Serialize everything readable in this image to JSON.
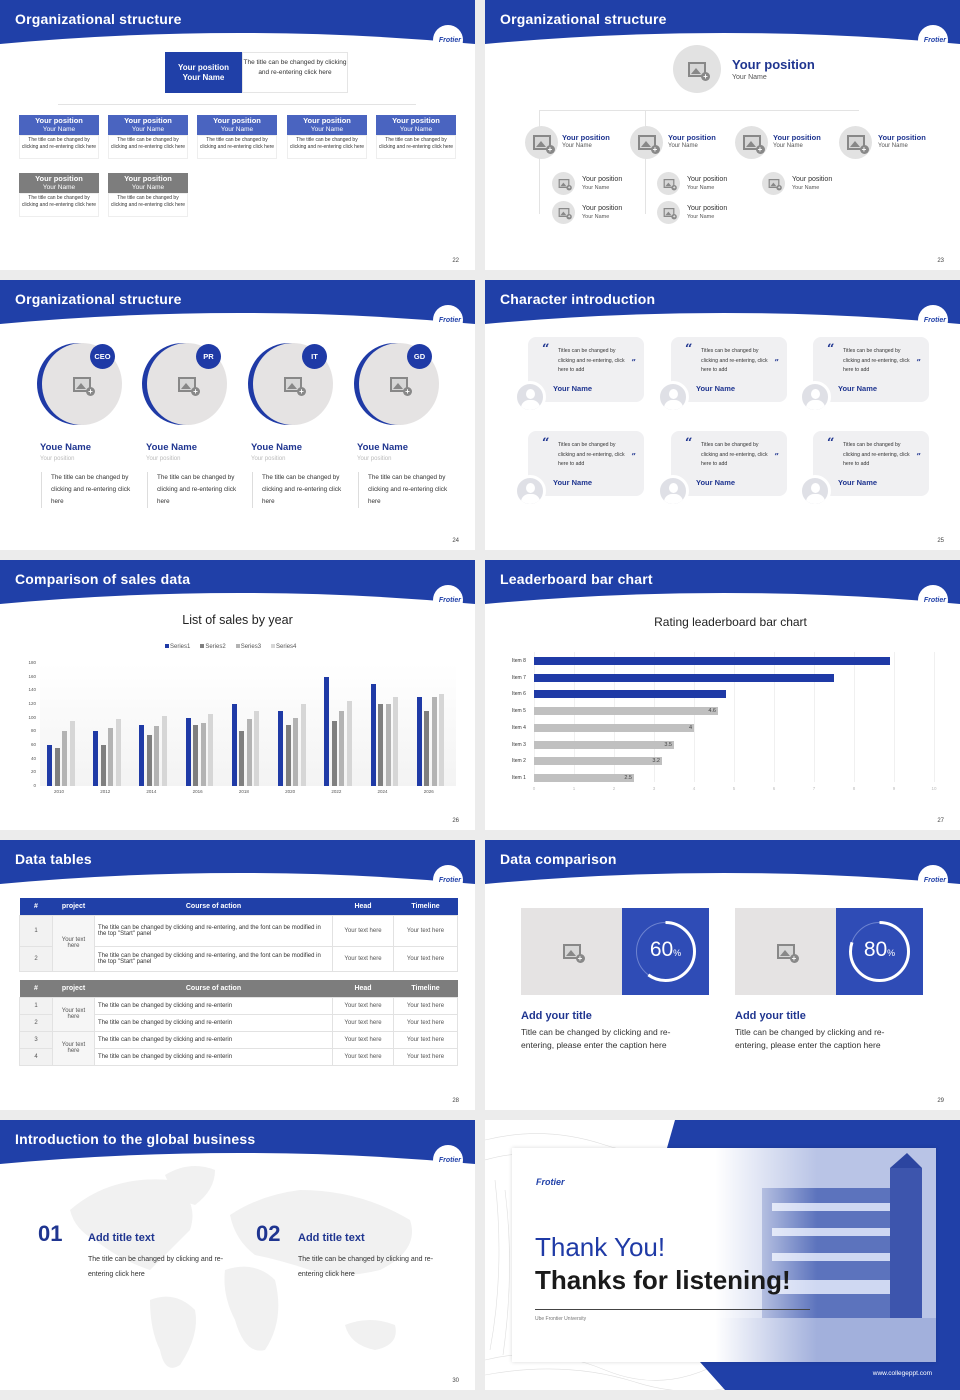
{
  "brand": {
    "logo_text": "Frotier",
    "primary_color": "#2040a8",
    "dark_text_color": "#1f3590",
    "gray_color": "#7d7d7d"
  },
  "slides": {
    "s22": {
      "title": "Organizational structure",
      "page": "22",
      "top": {
        "position": "Your position",
        "name": "Your Name",
        "desc": "The title can be changed by clicking and re-entering click here"
      },
      "row1": [
        {
          "position": "Your position",
          "name": "Your Name",
          "desc": "The title can be changed by clicking and re-entering click here"
        },
        {
          "position": "Your position",
          "name": "Your Name",
          "desc": "The title can be changed by clicking and re-entering click here"
        },
        {
          "position": "Your position",
          "name": "Your Name",
          "desc": "The title can be changed by clicking and re-entering click here"
        },
        {
          "position": "Your position",
          "name": "Your Name",
          "desc": "The title can be changed by clicking and re-entering click here"
        },
        {
          "position": "Your position",
          "name": "Your Name",
          "desc": "The title can be changed by clicking and re-entering click here"
        }
      ],
      "row2": [
        {
          "position": "Your position",
          "name": "Your Name",
          "desc": "The title can be changed by clicking and re-entering click here"
        },
        {
          "position": "Your position",
          "name": "Your Name",
          "desc": "The title can be changed by clicking and re-entering click here"
        }
      ]
    },
    "s23": {
      "title": "Organizational structure",
      "page": "23",
      "top": {
        "position": "Your position",
        "name": "Your Name"
      },
      "level2": [
        {
          "position": "Your position",
          "name": "Your Name"
        },
        {
          "position": "Your position",
          "name": "Your Name"
        },
        {
          "position": "Your position",
          "name": "Your Name"
        },
        {
          "position": "Your position",
          "name": "Your Name"
        }
      ],
      "level3": [
        {
          "position": "Your position",
          "name": "Your Name"
        },
        {
          "position": "Your position",
          "name": "Your Name"
        },
        {
          "position": "Your position",
          "name": "Your Name"
        },
        {
          "position": "Your position",
          "name": "Your Name"
        },
        {
          "position": "Your position",
          "name": "Your Name"
        }
      ]
    },
    "s24": {
      "title": "Organizational structure",
      "page": "24",
      "people": [
        {
          "role": "CEO",
          "name": "Youe Name",
          "position": "Your position",
          "desc": "The title can be changed by clicking and re-entering click here"
        },
        {
          "role": "PR",
          "name": "Youe Name",
          "position": "Your position",
          "desc": "The title can be changed by clicking and re-entering click here"
        },
        {
          "role": "IT",
          "name": "Youe Name",
          "position": "Your position",
          "desc": "The title can be changed by clicking and re-entering click here"
        },
        {
          "role": "GD",
          "name": "Youe Name",
          "position": "Your position",
          "desc": "The title can be changed by clicking and re-entering click here"
        }
      ]
    },
    "s25": {
      "title": "Character introduction",
      "page": "25",
      "quote_open": "“",
      "quote_close": "”",
      "cards": [
        {
          "text": "Titles can be changed by clicking and re-entering, click here to add",
          "name": "Your Name"
        },
        {
          "text": "Titles can be changed by clicking and re-entering, click here to add",
          "name": "Your Name"
        },
        {
          "text": "Titles can be changed by clicking and re-entering, click here to add",
          "name": "Your Name"
        },
        {
          "text": "Titles can be changed by clicking and re-entering, click here to add",
          "name": "Your Name"
        },
        {
          "text": "Titles can be changed by clicking and re-entering, click here to add",
          "name": "Your Name"
        },
        {
          "text": "Titles can be changed by clicking and re-entering, click here to add",
          "name": "Your Name"
        }
      ]
    },
    "s26": {
      "title": "Comparison of sales data",
      "page": "26"
    },
    "s27": {
      "title": "Leaderboard bar chart",
      "page": "27"
    },
    "s28": {
      "title": "Data tables",
      "page": "28",
      "table1": {
        "headers": [
          "#",
          "project",
          "Course of action",
          "Head",
          "Timeline"
        ],
        "project": "Your text here",
        "rows": [
          {
            "n": "1",
            "action": "The title can be changed by clicking and re-entering, and the font can be modified in the top \"Start\" panel",
            "head": "Your text here",
            "timeline": "Your text here"
          },
          {
            "n": "2",
            "action": "The title can be changed by clicking and re-entering, and the font can be modified in the top \"Start\" panel",
            "head": "Your text here",
            "timeline": "Your text here"
          }
        ]
      },
      "table2": {
        "headers": [
          "#",
          "project",
          "Course of action",
          "Head",
          "Timeline"
        ],
        "projects": [
          "Your text here",
          "Your text here"
        ],
        "rows": [
          {
            "n": "1",
            "action": "The title can be changed by clicking and re-enterin",
            "head": "Your text here",
            "timeline": "Your text here"
          },
          {
            "n": "2",
            "action": "The title can be changed by clicking and re-enterin",
            "head": "Your text here",
            "timeline": "Your text here"
          },
          {
            "n": "3",
            "action": "The title can be changed by clicking and re-enterin",
            "head": "Your text here",
            "timeline": "Your text here"
          },
          {
            "n": "4",
            "action": "The title can be changed by clicking and re-enterin",
            "head": "Your text here",
            "timeline": "Your text here"
          }
        ]
      }
    },
    "s29": {
      "title": "Data comparison",
      "page": "29",
      "items": [
        {
          "value": "60",
          "unit": "%",
          "title": "Add your title",
          "desc": "Title can be changed by clicking and re-entering, please enter the caption here"
        },
        {
          "value": "80",
          "unit": "%",
          "title": "Add your title",
          "desc": "Title can be changed by clicking and re-entering, please enter the caption here"
        }
      ]
    },
    "s30": {
      "title": "Introduction to the global business",
      "page": "30",
      "items": [
        {
          "num": "01",
          "title": "Add title text",
          "desc": "The title can be changed by clicking and re-entering click here"
        },
        {
          "num": "02",
          "title": "Add title text",
          "desc": "The title can be changed by clicking and re-entering click here"
        }
      ]
    },
    "s31": {
      "logo": "Frotier",
      "line1": "Thank You!",
      "line2": "Thanks for listening!",
      "sub": "Ube Frontier University",
      "url": "www.collegeppt.com"
    }
  },
  "chart_data": [
    {
      "type": "bar",
      "title": "List of sales by year",
      "categories": [
        "2010",
        "2012",
        "2014",
        "2016",
        "2018",
        "2020",
        "2022",
        "2024",
        "2026"
      ],
      "series": [
        {
          "name": "Series1",
          "color": "#1f3aa6",
          "values": [
            60,
            80,
            90,
            100,
            120,
            110,
            160,
            150,
            130
          ]
        },
        {
          "name": "Series2",
          "color": "#7f7f7f",
          "values": [
            55,
            60,
            75,
            90,
            80,
            90,
            95,
            120,
            110
          ]
        },
        {
          "name": "Series3",
          "color": "#b3b3b3",
          "values": [
            80,
            85,
            88,
            92,
            98,
            100,
            110,
            120,
            130
          ]
        },
        {
          "name": "Series4",
          "color": "#d6d6d6",
          "values": [
            95,
            98,
            102,
            105,
            110,
            120,
            125,
            130,
            135
          ]
        }
      ],
      "yticks": [
        0,
        20,
        40,
        60,
        80,
        100,
        120,
        140,
        160,
        180
      ],
      "ylim": [
        0,
        180
      ],
      "xlabel": "",
      "ylabel": "",
      "legend_position": "top",
      "grid": false
    },
    {
      "type": "bar",
      "orientation": "horizontal",
      "title": "Rating leaderboard bar chart",
      "categories": [
        "Item 8",
        "Item 7",
        "Item 6",
        "Item 5",
        "Item 4",
        "Item 3",
        "Item 2",
        "Item 1"
      ],
      "values": [
        8.9,
        7.5,
        4.8,
        4.6,
        4,
        3.5,
        3.2,
        2.5
      ],
      "labels_shown": [
        "",
        "",
        "",
        "4.6",
        "4",
        "3.5",
        "3.2",
        "2.5"
      ],
      "highlight": [
        "Item 8",
        "Item 7",
        "Item 6"
      ],
      "colors": {
        "highlight": "#1f3aa6",
        "normal": "#c0c0c0"
      },
      "xticks": [
        0,
        1,
        2,
        3,
        4,
        5,
        6,
        7,
        8,
        9,
        10
      ],
      "xlim": [
        0,
        10
      ],
      "grid": true
    }
  ]
}
